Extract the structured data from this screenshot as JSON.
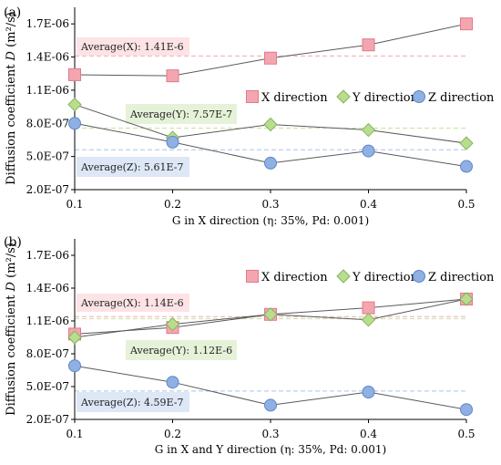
{
  "chart_data": [
    {
      "panel_label": "(a)",
      "type": "line",
      "x": [
        0.1,
        0.2,
        0.3,
        0.4,
        0.5
      ],
      "x_ticks": [
        "0.1",
        "0.2",
        "0.3",
        "0.4",
        "0.5"
      ],
      "xlim": [
        0.1,
        0.5
      ],
      "xlabel": "G in X direction (η: 35%, Pd: 0.001)",
      "ylabel_prefix": "Diffusion coefficient ",
      "ylabel_italic": "D",
      "ylabel_units": " (m²/s)",
      "ylim": [
        2e-07,
        1.85e-06
      ],
      "y_ticks": [
        2e-07,
        5e-07,
        8e-07,
        1.1e-06,
        1.4e-06,
        1.7e-06
      ],
      "y_tick_labels": [
        "2.0E-07",
        "5.0E-07",
        "8.0E-07",
        "1.1E-06",
        "1.4E-06",
        "1.7E-06"
      ],
      "grid": false,
      "legend_position": "right",
      "series": [
        {
          "name": "X direction",
          "marker": "square",
          "fill": "#f4a6b0",
          "stroke": "#e07a8a",
          "values": [
            1.24e-06,
            1.23e-06,
            1.39e-06,
            1.51e-06,
            1.7e-06
          ]
        },
        {
          "name": "Y direction",
          "marker": "diamond",
          "fill": "#b9dd8e",
          "stroke": "#86b35a",
          "values": [
            9.7e-07,
            6.7e-07,
            7.9e-07,
            7.4e-07,
            6.2e-07
          ]
        },
        {
          "name": "Z direction",
          "marker": "circle",
          "fill": "#8fb0e3",
          "stroke": "#5e86c8",
          "values": [
            8e-07,
            6.3e-07,
            4.4e-07,
            5.5e-07,
            4.1e-07
          ]
        }
      ],
      "averages": [
        {
          "label": "Average(X):  1.41E-6",
          "value": 1.41e-06,
          "line_color": "#f3a8b2",
          "box_color": "#fde3e6"
        },
        {
          "label": "Average(Y):  7.57E-7",
          "value": 7.57e-07,
          "line_color": "#c3e2a0",
          "box_color": "#e6f2d8"
        },
        {
          "label": "Average(Z):  5.61E-7",
          "value": 5.61e-07,
          "line_color": "#a9c2ea",
          "box_color": "#dde7f6"
        }
      ]
    },
    {
      "panel_label": "(b)",
      "type": "line",
      "x": [
        0.1,
        0.2,
        0.3,
        0.4,
        0.5
      ],
      "x_ticks": [
        "0.1",
        "0.2",
        "0.3",
        "0.4",
        "0.5"
      ],
      "xlim": [
        0.1,
        0.5
      ],
      "xlabel": "G in X and Y direction (η: 35%, Pd: 0.001)",
      "ylabel_prefix": "Diffusion coefficient ",
      "ylabel_italic": "D",
      "ylabel_units": " (m²/s)",
      "ylim": [
        2e-07,
        1.85e-06
      ],
      "y_ticks": [
        2e-07,
        5e-07,
        8e-07,
        1.1e-06,
        1.4e-06,
        1.7e-06
      ],
      "y_tick_labels": [
        "2.0E-07",
        "5.0E-07",
        "8.0E-07",
        "1.1E-06",
        "1.4E-06",
        "1.7E-06"
      ],
      "grid": false,
      "legend_position": "top-right",
      "series": [
        {
          "name": "X direction",
          "marker": "square",
          "fill": "#f4a6b0",
          "stroke": "#e07a8a",
          "values": [
            9.8e-07,
            1.04e-06,
            1.16e-06,
            1.22e-06,
            1.3e-06
          ]
        },
        {
          "name": "Y direction",
          "marker": "diamond",
          "fill": "#b9dd8e",
          "stroke": "#86b35a",
          "values": [
            9.5e-07,
            1.07e-06,
            1.16e-06,
            1.11e-06,
            1.3e-06
          ]
        },
        {
          "name": "Z direction",
          "marker": "circle",
          "fill": "#8fb0e3",
          "stroke": "#5e86c8",
          "values": [
            6.9e-07,
            5.4e-07,
            3.3e-07,
            4.5e-07,
            2.9e-07
          ]
        }
      ],
      "averages": [
        {
          "label": "Average(X):  1.14E-6",
          "value": 1.14e-06,
          "line_color": "#f3a8b2",
          "box_color": "#fde3e6"
        },
        {
          "label": "Average(Y):  1.12E-6",
          "value": 1.12e-06,
          "line_color": "#c3e2a0",
          "box_color": "#e6f2d8"
        },
        {
          "label": "Average(Z):  4.59E-7",
          "value": 4.59e-07,
          "line_color": "#a9c2ea",
          "box_color": "#dde7f6"
        }
      ]
    }
  ]
}
